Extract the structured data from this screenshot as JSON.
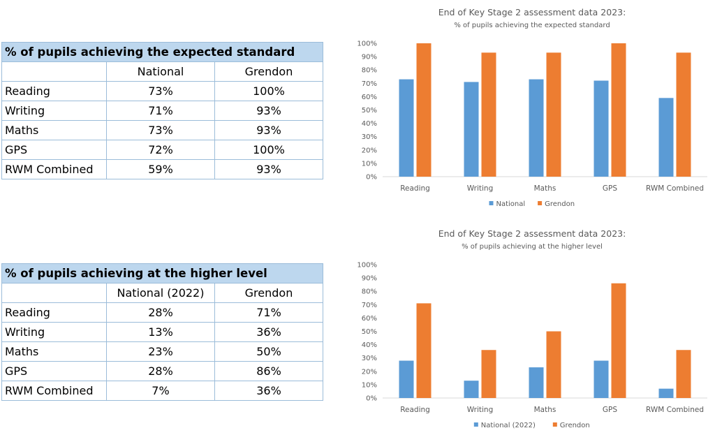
{
  "tables": [
    {
      "title": "% of pupils achieving the expected standard",
      "columns": [
        "",
        "National",
        "Grendon"
      ],
      "rows": [
        [
          "Reading",
          "73%",
          "100%"
        ],
        [
          "Writing",
          "71%",
          "93%"
        ],
        [
          "Maths",
          "73%",
          "93%"
        ],
        [
          "GPS",
          "72%",
          "100%"
        ],
        [
          "RWM Combined",
          "59%",
          "93%"
        ]
      ]
    },
    {
      "title": "% of pupils achieving at the higher level",
      "columns": [
        "",
        "National (2022)",
        "Grendon"
      ],
      "rows": [
        [
          "Reading",
          "28%",
          "71%"
        ],
        [
          "Writing",
          "13%",
          "36%"
        ],
        [
          "Maths",
          "23%",
          "50%"
        ],
        [
          "GPS",
          "28%",
          "86%"
        ],
        [
          "RWM Combined",
          "7%",
          "36%"
        ]
      ]
    }
  ],
  "chart_data": [
    {
      "type": "bar",
      "title": "End of Key Stage 2 assessment data 2023:",
      "subtitle": "% of pupils achieving the expected standard",
      "categories": [
        "Reading",
        "Writing",
        "Maths",
        "GPS",
        "RWM Combined"
      ],
      "series": [
        {
          "name": "National",
          "color": "#5b9bd5",
          "values": [
            73,
            71,
            73,
            72,
            59
          ]
        },
        {
          "name": "Grendon",
          "color": "#ed7d31",
          "values": [
            100,
            93,
            93,
            100,
            93
          ]
        }
      ],
      "ylim": [
        0,
        100
      ],
      "yticks": [
        "0%",
        "10%",
        "20%",
        "30%",
        "40%",
        "50%",
        "60%",
        "70%",
        "80%",
        "90%",
        "100%"
      ],
      "grid": false,
      "legend": "bottom"
    },
    {
      "type": "bar",
      "title": "End of Key Stage 2 assessment data 2023:",
      "subtitle": "% of pupils achieving at the higher level",
      "categories": [
        "Reading",
        "Writing",
        "Maths",
        "GPS",
        "RWM Combined"
      ],
      "series": [
        {
          "name": "National (2022)",
          "color": "#5b9bd5",
          "values": [
            28,
            13,
            23,
            28,
            7
          ]
        },
        {
          "name": "Grendon",
          "color": "#ed7d31",
          "values": [
            71,
            36,
            50,
            86,
            36
          ]
        }
      ],
      "ylim": [
        0,
        100
      ],
      "yticks": [
        "0%",
        "10%",
        "20%",
        "30%",
        "40%",
        "50%",
        "60%",
        "70%",
        "80%",
        "90%",
        "100%"
      ],
      "grid": false,
      "legend": "bottom"
    }
  ]
}
